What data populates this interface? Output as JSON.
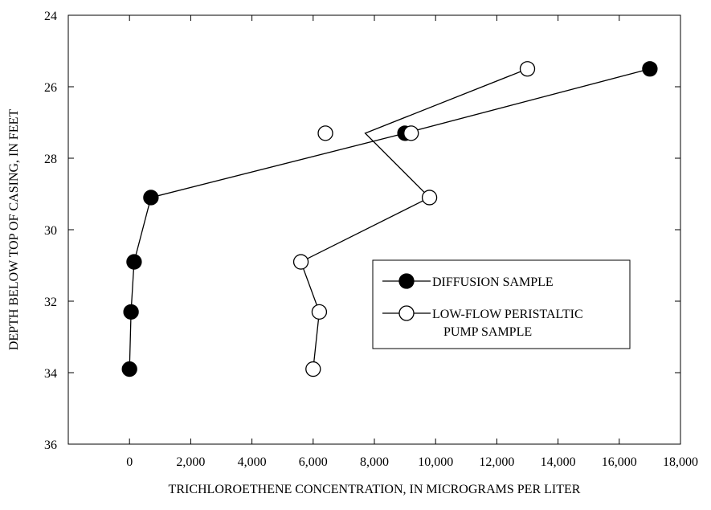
{
  "chart_data": {
    "type": "line",
    "xlabel": "TRICHLOROETHENE CONCENTRATION, IN MICROGRAMS PER LITER",
    "ylabel": "DEPTH BELOW TOP OF CASING, IN FEET",
    "xlim": [
      -2000,
      18000
    ],
    "ylim": [
      36,
      24
    ],
    "y_inverted": true,
    "x_ticks": [
      0,
      2000,
      4000,
      6000,
      8000,
      10000,
      12000,
      14000,
      16000,
      18000
    ],
    "x_tick_labels": [
      "0",
      "2,000",
      "4,000",
      "6,000",
      "8,000",
      "10,000",
      "12,000",
      "14,000",
      "16,000",
      "18,000"
    ],
    "y_ticks": [
      24,
      26,
      28,
      30,
      32,
      34,
      36
    ],
    "y_tick_labels": [
      "24",
      "26",
      "28",
      "30",
      "32",
      "34",
      "36"
    ],
    "grid": false,
    "legend_position": "center-right",
    "series": [
      {
        "name": "DIFFUSION SAMPLE",
        "marker": "filled-circle",
        "color": "#000000",
        "points": [
          {
            "x": 17000,
            "y": 25.5
          },
          {
            "x": 9000,
            "y": 27.3
          },
          {
            "x": 700,
            "y": 29.1
          },
          {
            "x": 150,
            "y": 30.9
          },
          {
            "x": 50,
            "y": 32.3
          },
          {
            "x": 0,
            "y": 33.9
          }
        ]
      },
      {
        "name": "LOW-FLOW PERISTALTIC\nPUMP SAMPLE",
        "legend_lines": [
          "LOW-FLOW PERISTALTIC",
          "PUMP SAMPLE"
        ],
        "marker": "open-circle",
        "color": "#000000",
        "points": [
          {
            "x": 13000,
            "y": 25.5
          },
          {
            "x": 6400,
            "y": 27.3
          },
          {
            "x": 9200,
            "y": 27.3
          },
          {
            "x": 9800,
            "y": 29.1
          },
          {
            "x": 5600,
            "y": 30.9
          },
          {
            "x": 6200,
            "y": 32.3
          },
          {
            "x": 6000,
            "y": 33.9
          }
        ],
        "line_path": [
          {
            "x": 13000,
            "y": 25.5
          },
          {
            "x": 7700,
            "y": 27.3
          },
          {
            "x": 9800,
            "y": 29.1
          },
          {
            "x": 5600,
            "y": 30.9
          },
          {
            "x": 6200,
            "y": 32.3
          },
          {
            "x": 6000,
            "y": 33.9
          }
        ]
      }
    ]
  }
}
